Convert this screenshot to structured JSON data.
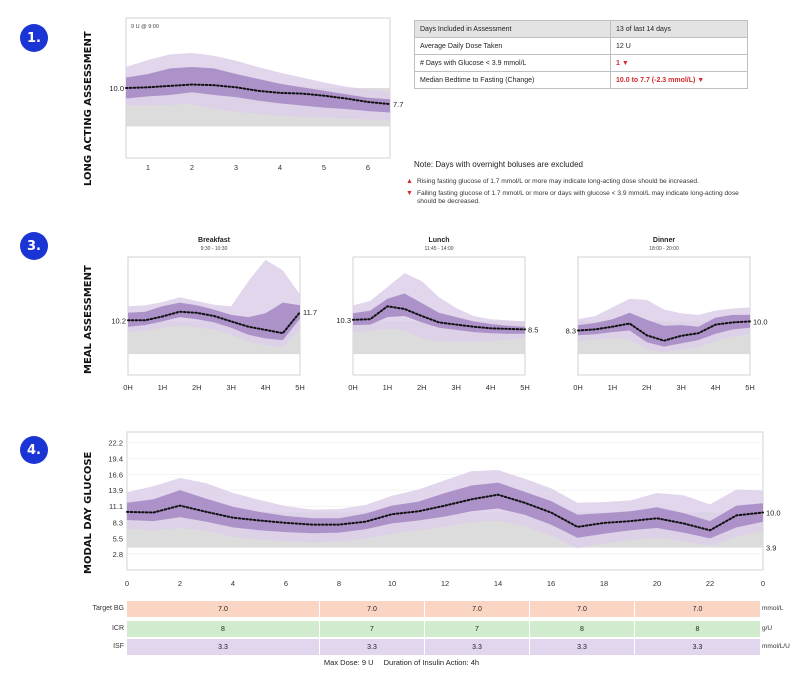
{
  "sections": {
    "s1": {
      "badge": "1.",
      "label": "LONG ACTING ASSESSMENT"
    },
    "s3": {
      "badge": "3.",
      "label": "MEAL ASSESSMENT"
    },
    "s4": {
      "badge": "4.",
      "label": "MODAL DAY GLUCOSE"
    }
  },
  "assessment_table": {
    "header": {
      "label": "Days Included in Assessment",
      "value": "13 of last 14 days"
    },
    "rows": [
      {
        "label": "Average Daily Dose Taken",
        "value": "12 U"
      },
      {
        "label": "# Days with Glucose < 3.9 mmol/L",
        "value": "1 ▼"
      },
      {
        "label": "Median Bedtime to Fasting (Change)",
        "value": "10.0 to 7.7 (-2.3 mmol/L) ▼"
      }
    ]
  },
  "notes": {
    "main": "Note: Days with overnight boluses are excluded",
    "rising": "Rising fasting glucose of 1.7 mmol/L or more may indicate long-acting dose should be increased.",
    "falling": "Falling fasting glucose of 1.7 mmol/L or more or days with glucose < 3.9 mmol/L may indicate long-acting dose should be decreased."
  },
  "colors": {
    "dark_band": "#a78bc5",
    "light_band": "#dccfe9",
    "target": "#dcdcdc",
    "median": "#111111",
    "alert": "#d42a2a",
    "badge": "#1a34d6"
  },
  "chart_data": [
    {
      "id": "long_acting",
      "type": "area",
      "annotation": "9 U @ 9:00",
      "x_ticks": [
        "1",
        "2",
        "3",
        "4",
        "5",
        "6"
      ],
      "xlim": [
        0.5,
        6.5
      ],
      "ylim": [
        0,
        20
      ],
      "target_range": [
        4.5,
        10.0
      ],
      "x": [
        0.5,
        1,
        1.5,
        2,
        2.5,
        3,
        3.5,
        4,
        4.5,
        5,
        5.5,
        6,
        6.5
      ],
      "median": [
        10.0,
        10.1,
        10.3,
        10.5,
        10.4,
        10.1,
        9.6,
        9.3,
        9.2,
        8.9,
        8.5,
        8.0,
        7.7
      ],
      "p25": [
        8.5,
        8.8,
        9.0,
        9.4,
        9.0,
        8.7,
        8.2,
        7.8,
        7.5,
        7.2,
        7.0,
        6.7,
        6.5
      ],
      "p75": [
        11.5,
        12.0,
        12.8,
        13.0,
        12.8,
        12.0,
        11.3,
        10.6,
        10.1,
        9.6,
        9.1,
        8.6,
        8.4
      ],
      "p10": [
        7.5,
        7.5,
        7.6,
        7.7,
        7.0,
        6.6,
        6.3,
        6.0,
        5.9,
        5.8,
        5.6,
        5.5,
        5.4
      ],
      "p90": [
        13.0,
        14.0,
        14.8,
        15.0,
        14.6,
        13.9,
        13.0,
        12.2,
        11.5,
        10.8,
        10.2,
        9.8,
        9.4
      ],
      "start_label": "10.0",
      "end_label": "7.7"
    },
    {
      "id": "breakfast",
      "type": "area",
      "title": "Breakfast",
      "subtitle": "9:30 - 10:30",
      "x_ticks": [
        "0H",
        "1H",
        "2H",
        "3H",
        "4H",
        "5H"
      ],
      "xlim": [
        0,
        5
      ],
      "ylim": [
        0,
        22
      ],
      "target_range": [
        3.9,
        10.0
      ],
      "x": [
        0,
        0.5,
        1,
        1.5,
        2,
        2.5,
        3,
        3.5,
        4,
        4.5,
        5
      ],
      "median": [
        10.2,
        10.2,
        10.9,
        11.8,
        11.6,
        11.0,
        10.0,
        9.0,
        8.4,
        7.8,
        11.7
      ],
      "p25": [
        9.0,
        9.3,
        10.0,
        10.8,
        10.4,
        9.8,
        8.8,
        7.5,
        6.8,
        6.5,
        10.5
      ],
      "p75": [
        11.6,
        11.8,
        12.8,
        13.5,
        13.0,
        12.2,
        11.2,
        10.8,
        11.5,
        13.5,
        13.0
      ],
      "p10": [
        7.9,
        8.3,
        8.8,
        9.2,
        8.9,
        8.4,
        7.5,
        6.2,
        5.5,
        5.2,
        8.5
      ],
      "p90": [
        12.8,
        13.0,
        13.6,
        14.5,
        13.8,
        13.1,
        12.8,
        17.5,
        21.5,
        19.5,
        15.0
      ],
      "start_label": "10.2",
      "end_label": "11.7"
    },
    {
      "id": "lunch",
      "type": "area",
      "title": "Lunch",
      "subtitle": "11:45 - 14:00",
      "x_ticks": [
        "0H",
        "1H",
        "2H",
        "3H",
        "4H",
        "5H"
      ],
      "xlim": [
        0,
        5
      ],
      "ylim": [
        0,
        22
      ],
      "target_range": [
        3.9,
        10.0
      ],
      "x": [
        0,
        0.5,
        1,
        1.5,
        2,
        2.5,
        3,
        3.5,
        4,
        4.5,
        5
      ],
      "median": [
        10.3,
        10.4,
        12.8,
        12.3,
        11.0,
        9.8,
        9.4,
        9.0,
        8.7,
        8.6,
        8.5
      ],
      "p25": [
        9.3,
        9.4,
        10.8,
        11.0,
        9.8,
        8.8,
        8.4,
        8.0,
        7.8,
        7.7,
        7.7
      ],
      "p75": [
        11.5,
        12.0,
        14.2,
        15.2,
        13.4,
        11.6,
        10.8,
        10.0,
        9.5,
        9.2,
        9.0
      ],
      "p10": [
        8.0,
        8.2,
        8.6,
        8.3,
        6.8,
        6.3,
        6.2,
        6.2,
        6.3,
        6.6,
        6.8
      ],
      "p90": [
        13.0,
        13.8,
        16.4,
        19.0,
        17.5,
        14.5,
        12.5,
        11.0,
        10.4,
        10.2,
        10.0
      ],
      "start_label": "10.3",
      "end_label": "8.5"
    },
    {
      "id": "dinner",
      "type": "area",
      "title": "Dinner",
      "subtitle": "18:00 - 20:00",
      "x_ticks": [
        "0H",
        "1H",
        "2H",
        "3H",
        "4H",
        "5H"
      ],
      "xlim": [
        0,
        5
      ],
      "ylim": [
        0,
        22
      ],
      "target_range": [
        3.9,
        10.0
      ],
      "x": [
        0,
        0.5,
        1,
        1.5,
        2,
        2.5,
        3,
        3.5,
        4,
        4.5,
        5
      ],
      "median": [
        8.3,
        8.5,
        9.0,
        9.6,
        7.4,
        6.4,
        7.3,
        7.8,
        9.4,
        9.8,
        10.0
      ],
      "p25": [
        7.4,
        7.6,
        8.0,
        8.3,
        6.1,
        5.3,
        5.9,
        6.5,
        7.7,
        8.5,
        8.8
      ],
      "p75": [
        9.3,
        9.7,
        10.4,
        11.6,
        10.3,
        9.2,
        9.3,
        9.0,
        10.7,
        11.2,
        11.2
      ],
      "p10": [
        6.3,
        6.6,
        6.8,
        6.6,
        4.8,
        4.2,
        4.8,
        5.2,
        6.3,
        7.2,
        7.6
      ],
      "p90": [
        10.4,
        11.0,
        12.6,
        14.2,
        14.0,
        12.2,
        11.5,
        11.2,
        12.0,
        12.4,
        12.6
      ],
      "start_label": "8.3",
      "end_label": "10.0"
    },
    {
      "id": "modal_day",
      "type": "area",
      "y_ticks": [
        "2.8",
        "5.5",
        "8.3",
        "11.1",
        "13.9",
        "16.6",
        "19.4",
        "22.2"
      ],
      "x_ticks": [
        "0",
        "2",
        "4",
        "6",
        "8",
        "10",
        "12",
        "14",
        "16",
        "18",
        "20",
        "22",
        "0"
      ],
      "xlim": [
        0,
        24
      ],
      "ylim": [
        0,
        24
      ],
      "target_range": [
        3.9,
        10.0
      ],
      "x": [
        0,
        1,
        2,
        3,
        4,
        5,
        6,
        7,
        8,
        9,
        10,
        11,
        12,
        13,
        14,
        15,
        16,
        17,
        18,
        19,
        20,
        21,
        22,
        23,
        24
      ],
      "median": [
        10.1,
        10.0,
        11.2,
        10.1,
        9.1,
        8.6,
        8.2,
        7.9,
        7.9,
        8.4,
        9.7,
        10.2,
        11.2,
        12.3,
        13.1,
        11.7,
        10.0,
        7.5,
        8.2,
        8.5,
        9.0,
        8.1,
        6.9,
        9.5,
        10.0
      ],
      "p25": [
        8.7,
        8.5,
        9.2,
        8.4,
        7.4,
        6.9,
        6.6,
        6.4,
        6.5,
        7.1,
        8.1,
        8.6,
        9.3,
        10.2,
        10.7,
        9.6,
        7.9,
        5.6,
        6.3,
        6.9,
        7.3,
        6.5,
        5.5,
        7.4,
        8.4
      ],
      "p75": [
        11.7,
        12.3,
        13.9,
        12.4,
        11.0,
        10.1,
        9.4,
        9.0,
        9.0,
        9.8,
        11.2,
        11.9,
        13.4,
        14.7,
        15.2,
        13.6,
        12.0,
        9.6,
        9.9,
        10.2,
        10.9,
        9.9,
        8.5,
        11.2,
        11.6
      ],
      "p10": [
        7.2,
        6.9,
        7.3,
        6.8,
        5.8,
        5.3,
        5.0,
        4.8,
        4.9,
        5.5,
        6.3,
        6.9,
        7.5,
        8.3,
        8.6,
        7.6,
        6.0,
        3.8,
        4.6,
        5.2,
        5.6,
        5.0,
        4.2,
        5.8,
        6.8
      ],
      "p90": [
        13.5,
        14.6,
        16.0,
        15.1,
        13.4,
        12.2,
        11.1,
        10.5,
        10.6,
        11.3,
        12.9,
        14.0,
        15.6,
        17.2,
        17.4,
        15.9,
        14.2,
        11.7,
        11.8,
        12.1,
        13.4,
        13.0,
        11.4,
        14.0,
        13.8
      ],
      "end_label": "10.0",
      "low_label": "3.9"
    }
  ],
  "schedule": {
    "rows": [
      {
        "label": "Target BG",
        "unit": "mmol/L",
        "color": "#fbd5c4",
        "values": [
          "7.0",
          "7.0",
          "7.0",
          "7.0",
          "7.0"
        ]
      },
      {
        "label": "ICR",
        "unit": "g/U",
        "color": "#d1ebcf",
        "values": [
          "8",
          "7",
          "7",
          "8",
          "8"
        ]
      },
      {
        "label": "ISF",
        "unit": "mmol/L/U",
        "color": "#e2d5ee",
        "values": [
          "3.3",
          "3.3",
          "3.3",
          "3.3",
          "3.3"
        ]
      }
    ],
    "footer_max_dose": "Max Dose: 9 U",
    "footer_duration": "Duration of Insulin Action: 4h"
  }
}
